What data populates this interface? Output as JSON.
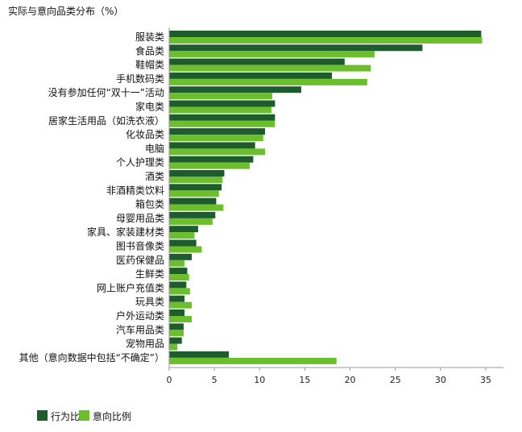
{
  "chart_data": {
    "type": "bar",
    "orientation": "horizontal",
    "title": "实际与意向品类分布（%）",
    "categories": [
      "服装类",
      "食品类",
      "鞋帽类",
      "手机数码类",
      "没有参加任何“双十一”活动",
      "家电类",
      "居家生活用品（如洗衣液）",
      "化妆品类",
      "电脑",
      "个人护理类",
      "酒类",
      "非酒精类饮料",
      "箱包类",
      "母婴用品类",
      "家具、家装建材类",
      "图书音像类",
      "医药保健品",
      "生鲜类",
      "网上账户充值类",
      "玩具类",
      "户外运动类",
      "汽车用品类",
      "宠物用品",
      "其他（意向数据中包括“不确定”）"
    ],
    "series": [
      {
        "name": "行为比例",
        "color": "#1e5c2e",
        "values": [
          34.5,
          28.0,
          19.4,
          18.0,
          14.6,
          11.7,
          11.7,
          10.6,
          9.5,
          9.3,
          6.1,
          5.8,
          5.2,
          5.1,
          3.2,
          3.0,
          2.5,
          2.0,
          1.9,
          1.7,
          1.7,
          1.6,
          1.4,
          6.6
        ]
      },
      {
        "name": "意向比例",
        "color": "#6cbf2c",
        "values": [
          34.6,
          22.7,
          22.3,
          21.9,
          11.4,
          11.3,
          11.7,
          10.4,
          10.6,
          8.9,
          5.9,
          5.5,
          6.0,
          4.8,
          2.8,
          3.6,
          1.7,
          2.2,
          2.3,
          2.5,
          2.5,
          1.6,
          0.9,
          18.5
        ]
      }
    ],
    "xlim": [
      0,
      35
    ],
    "xticks": [
      0,
      5,
      10,
      15,
      20,
      25,
      30,
      35
    ],
    "grid": false,
    "legend_position": "bottom-left"
  }
}
